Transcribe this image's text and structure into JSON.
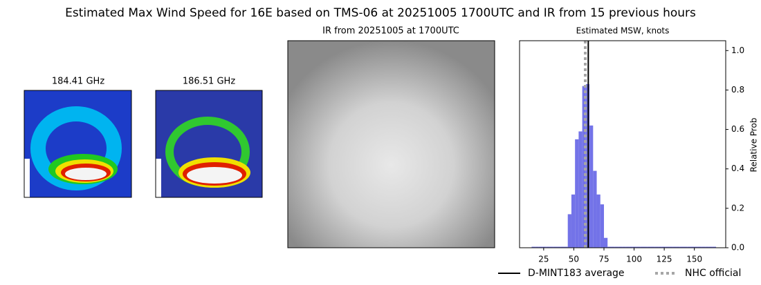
{
  "title": "Estimated Max Wind Speed for 16E based on TMS-06 at 20251005 1700UTC and IR from 15 previous hours",
  "images": [
    {
      "title": "184.41 GHz"
    },
    {
      "title": "186.51 GHz"
    },
    {
      "title": "IR from 20251005 at 1700UTC"
    }
  ],
  "chart_data": {
    "type": "histogram",
    "title": "Estimated MSW, knots",
    "y_label": "Relative Prob",
    "color": "#7373e8",
    "bins": [
      15,
      18,
      21,
      24,
      27,
      30,
      33,
      36,
      39,
      42,
      45,
      48,
      51,
      54,
      57,
      60,
      63,
      66,
      69,
      72,
      75,
      78,
      81,
      84,
      87,
      90,
      93,
      96,
      99,
      102,
      105,
      108,
      111,
      114,
      117,
      120,
      123,
      126,
      129,
      132,
      135,
      138,
      141,
      144,
      147,
      150,
      153,
      156,
      159,
      162,
      165,
      168
    ],
    "values": [
      0.005,
      0.005,
      0.005,
      0.005,
      0.005,
      0.005,
      0.005,
      0.005,
      0.005,
      0.005,
      0.17,
      0.27,
      0.55,
      0.59,
      0.82,
      0.83,
      0.62,
      0.39,
      0.27,
      0.22,
      0.05,
      0.005,
      0.005,
      0.005,
      0.005,
      0.005,
      0.005,
      0.005,
      0.005,
      0.005,
      0.005,
      0.005,
      0.005,
      0.005,
      0.005,
      0.005,
      0.005,
      0.005,
      0.005,
      0.005,
      0.005,
      0.005,
      0.005,
      0.005,
      0.005,
      0.005,
      0.005,
      0.005,
      0.005,
      0.005,
      0.005
    ],
    "xlim": [
      5,
      176
    ],
    "xticks": [
      25,
      50,
      75,
      100,
      125,
      150
    ],
    "y2lim": [
      0,
      1.05
    ],
    "y2ticks": [
      {
        "value": 0,
        "label": "0.0"
      },
      0.2,
      0.4,
      0.6,
      0.8,
      {
        "value": 1.0,
        "label": "1.0"
      }
    ],
    "lines": [
      {
        "name": "D-MINT183 average",
        "value": 62,
        "color": "#000000",
        "style": "solid"
      },
      {
        "name": "NHC official",
        "value": 59.5,
        "color": "#a6a6a6",
        "style": "dotted"
      }
    ]
  }
}
